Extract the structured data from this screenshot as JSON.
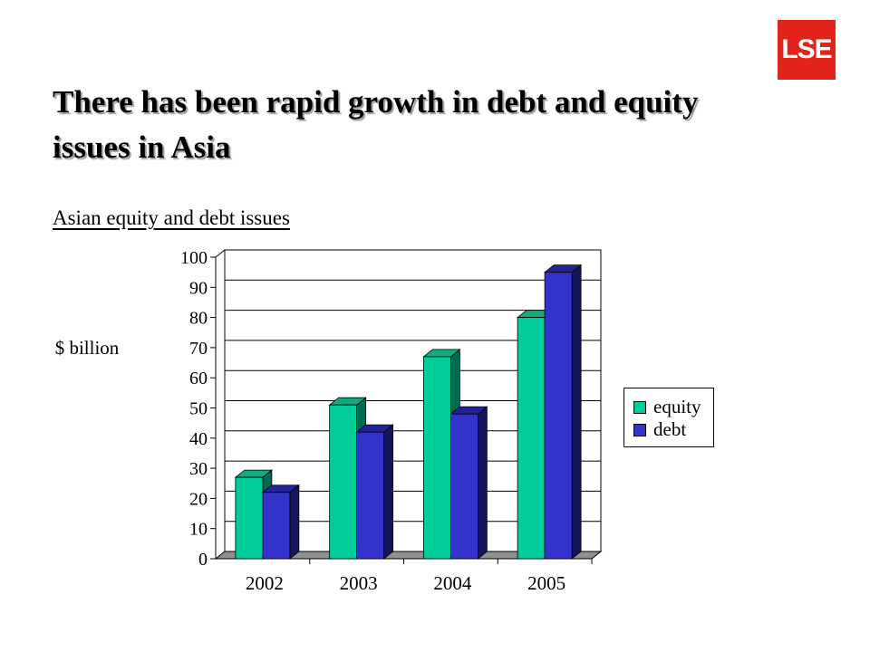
{
  "logo": {
    "text": "LSE"
  },
  "slide": {
    "title": "There has been rapid growth in debt and equity issues in Asia",
    "subtitle": "Asian equity and debt issues",
    "unit_label": "$ billion"
  },
  "colors": {
    "equity": "#00cc99",
    "debt": "#3333cc",
    "logo_red": "#e2231a"
  },
  "chart_data": {
    "type": "bar",
    "title": "",
    "xlabel": "",
    "ylabel": "$ billion",
    "categories": [
      "2002",
      "2003",
      "2004",
      "2005"
    ],
    "series": [
      {
        "name": "equity",
        "values": [
          27,
          51,
          67,
          80
        ]
      },
      {
        "name": "debt",
        "values": [
          22,
          42,
          48,
          95
        ]
      }
    ],
    "ylim": [
      0,
      100
    ],
    "yticks": [
      0,
      10,
      20,
      30,
      40,
      50,
      60,
      70,
      80,
      90,
      100
    ],
    "grid": true,
    "legend": "right",
    "style": "3d-clustered"
  }
}
